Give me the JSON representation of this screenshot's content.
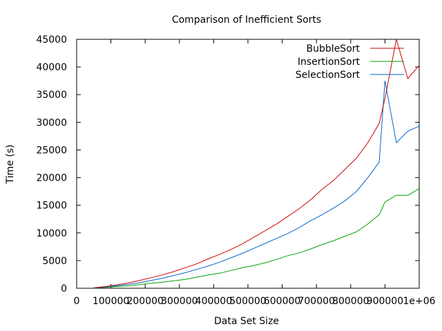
{
  "chart_data": {
    "type": "line",
    "title": "Comparison of Inefficient Sorts",
    "xlabel": "Data Set Size",
    "ylabel": "Time (s)",
    "xlim": [
      0,
      1000000
    ],
    "ylim": [
      0,
      45000
    ],
    "x_ticks": [
      "0",
      "100000",
      "200000",
      "300000",
      "400000",
      "500000",
      "600000",
      "700000",
      "800000",
      "900000",
      "1e+06"
    ],
    "y_ticks": [
      "0",
      "5000",
      "10000",
      "15000",
      "20000",
      "25000",
      "30000",
      "35000",
      "40000",
      "45000"
    ],
    "grid": false,
    "legend_position": "top-right",
    "x": [
      50000,
      83333,
      116667,
      150000,
      183333,
      216667,
      250000,
      283333,
      316667,
      350000,
      383333,
      416667,
      450000,
      483333,
      516667,
      550000,
      583333,
      616667,
      650000,
      683333,
      716667,
      750000,
      783333,
      816667,
      850000,
      883333,
      900000,
      933333,
      966667,
      1000000
    ],
    "series": [
      {
        "name": "BubbleSort",
        "color": "#cc0000",
        "values": [
          100,
          300,
          600,
          950,
          1400,
          1900,
          2400,
          3000,
          3700,
          4400,
          5300,
          6100,
          7000,
          8000,
          9200,
          10400,
          11600,
          13000,
          14400,
          16000,
          17900,
          19500,
          21500,
          23500,
          26300,
          29800,
          34300,
          45000,
          37900,
          40300
        ]
      },
      {
        "name": "InsertionSort",
        "color": "#00a000",
        "values": [
          50,
          150,
          300,
          450,
          650,
          900,
          1100,
          1350,
          1600,
          2000,
          2400,
          2700,
          3200,
          3700,
          4100,
          4600,
          5200,
          5900,
          6400,
          7100,
          7900,
          8600,
          9400,
          10200,
          11600,
          13300,
          15600,
          16800,
          16800,
          18000
        ]
      },
      {
        "name": "SelectionSort",
        "color": "#0066cc",
        "values": [
          70,
          200,
          450,
          700,
          1000,
          1400,
          1800,
          2300,
          2800,
          3400,
          4000,
          4700,
          5500,
          6300,
          7200,
          8100,
          9000,
          9900,
          11000,
          12200,
          13300,
          14500,
          15800,
          17500,
          20000,
          22800,
          37500,
          26300,
          28400,
          29300
        ]
      }
    ]
  }
}
